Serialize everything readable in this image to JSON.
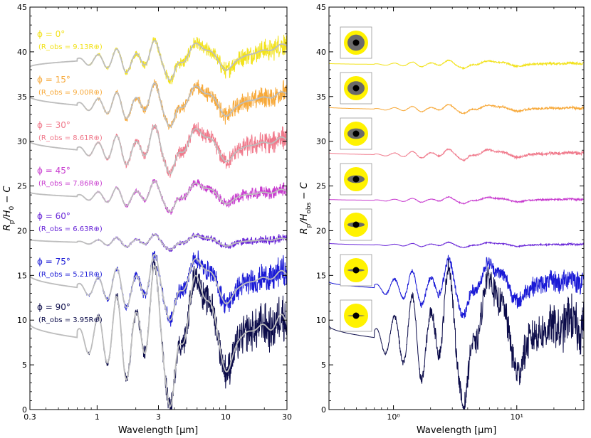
{
  "chart_data": [
    {
      "type": "line",
      "panel": "left",
      "xlabel": "Wavelength [μm]",
      "ylabel": "R_p/H_0 − C",
      "x_scale": "log",
      "xlim": [
        0.3,
        30
      ],
      "ylim": [
        0,
        45
      ],
      "x_ticks": [
        0.3,
        1,
        3,
        10,
        30
      ],
      "x_tick_labels": [
        "0.3",
        "1",
        "3",
        "10",
        "30"
      ],
      "y_ticks": [
        0,
        5,
        10,
        15,
        20,
        25,
        30,
        35,
        40,
        45
      ],
      "y_tick_labels": [
        "0",
        "5",
        "10",
        "15",
        "20",
        "25",
        "30",
        "35",
        "40",
        "45"
      ],
      "model_color": "#bdbdbd",
      "series": [
        {
          "phi_label": "ϕ = 0°",
          "robs_label": "(R_obs = 9.13R⊕)",
          "color": "#f2e21b",
          "baseline": 39.0,
          "amp": 0.9,
          "start": 38.3,
          "end_rise": 1.8,
          "noise": 1.0
        },
        {
          "phi_label": "ϕ = 15°",
          "robs_label": "(R_obs = 9.00R⊕)",
          "color": "#f7a93a",
          "baseline": 34.0,
          "amp": 1.0,
          "start": 35.0,
          "end_rise": 1.4,
          "noise": 1.0
        },
        {
          "phi_label": "ϕ = 30°",
          "robs_label": "(R_obs = 8.61R⊕)",
          "color": "#f07a8c",
          "baseline": 29.0,
          "amp": 1.1,
          "start": 30.0,
          "end_rise": 1.3,
          "noise": 1.0
        },
        {
          "phi_label": "ϕ = 45°",
          "robs_label": "(R_obs = 7.86R⊕)",
          "color": "#c83ccf",
          "baseline": 23.8,
          "amp": 0.7,
          "start": 24.3,
          "end_rise": 0.7,
          "noise": 0.6
        },
        {
          "phi_label": "ϕ = 60°",
          "robs_label": "(R_obs = 6.63R⊕)",
          "color": "#6a28d8",
          "baseline": 18.7,
          "amp": 0.35,
          "start": 19.0,
          "end_rise": 0.4,
          "noise": 0.4
        },
        {
          "phi_label": "ϕ = 75°",
          "robs_label": "(R_obs = 5.21R⊕)",
          "color": "#1a1ad6",
          "baseline": 13.6,
          "amp": 1.5,
          "start": 15.0,
          "end_rise": 1.7,
          "noise": 1.3
        },
        {
          "phi_label": "ϕ = 90°",
          "robs_label": "(R_obs = 3.95R⊕)",
          "color": "#0c0c4a",
          "baseline": 8.0,
          "amp": 3.2,
          "start": 9.6,
          "end_rise": 2.0,
          "noise": 2.0
        }
      ]
    },
    {
      "type": "line",
      "panel": "right",
      "xlabel": "Wavelength [μm]",
      "ylabel": "R_p/H_obs − C",
      "x_scale": "log",
      "xlim": [
        0.3,
        35
      ],
      "ylim": [
        0,
        45
      ],
      "x_ticks": [
        1,
        10
      ],
      "x_tick_labels": [
        "10⁰",
        "10¹"
      ],
      "y_ticks": [
        0,
        5,
        10,
        15,
        20,
        25,
        30,
        35,
        40,
        45
      ],
      "y_tick_labels": [
        "0",
        "5",
        "10",
        "15",
        "20",
        "25",
        "30",
        "35",
        "40",
        "45"
      ],
      "series": [
        {
          "color": "#f2e21b",
          "baseline": 38.6,
          "amp": 0.18,
          "start": 38.7,
          "end_rise": 0.15,
          "noise": 0.12,
          "inset_ratio": 0.12
        },
        {
          "color": "#f7a93a",
          "baseline": 33.6,
          "amp": 0.2,
          "start": 33.8,
          "end_rise": 0.15,
          "noise": 0.12,
          "inset_ratio": 0.25
        },
        {
          "color": "#f07a8c",
          "baseline": 28.5,
          "amp": 0.25,
          "start": 28.7,
          "end_rise": 0.25,
          "noise": 0.15,
          "inset_ratio": 0.45
        },
        {
          "color": "#c83ccf",
          "baseline": 23.4,
          "amp": 0.15,
          "start": 23.5,
          "end_rise": 0.15,
          "noise": 0.1,
          "inset_ratio": 0.62
        },
        {
          "color": "#6a28d8",
          "baseline": 18.4,
          "amp": 0.12,
          "start": 18.6,
          "end_rise": 0.1,
          "noise": 0.08,
          "inset_ratio": 0.78
        },
        {
          "color": "#1a1ad6",
          "baseline": 13.6,
          "amp": 1.3,
          "start": 14.3,
          "end_rise": 1.2,
          "noise": 1.0,
          "inset_ratio": 0.92
        },
        {
          "color": "#0c0c4a",
          "baseline": 8.0,
          "amp": 3.2,
          "start": 9.4,
          "end_rise": 2.0,
          "noise": 2.0,
          "inset_ratio": 1.0
        }
      ]
    }
  ]
}
